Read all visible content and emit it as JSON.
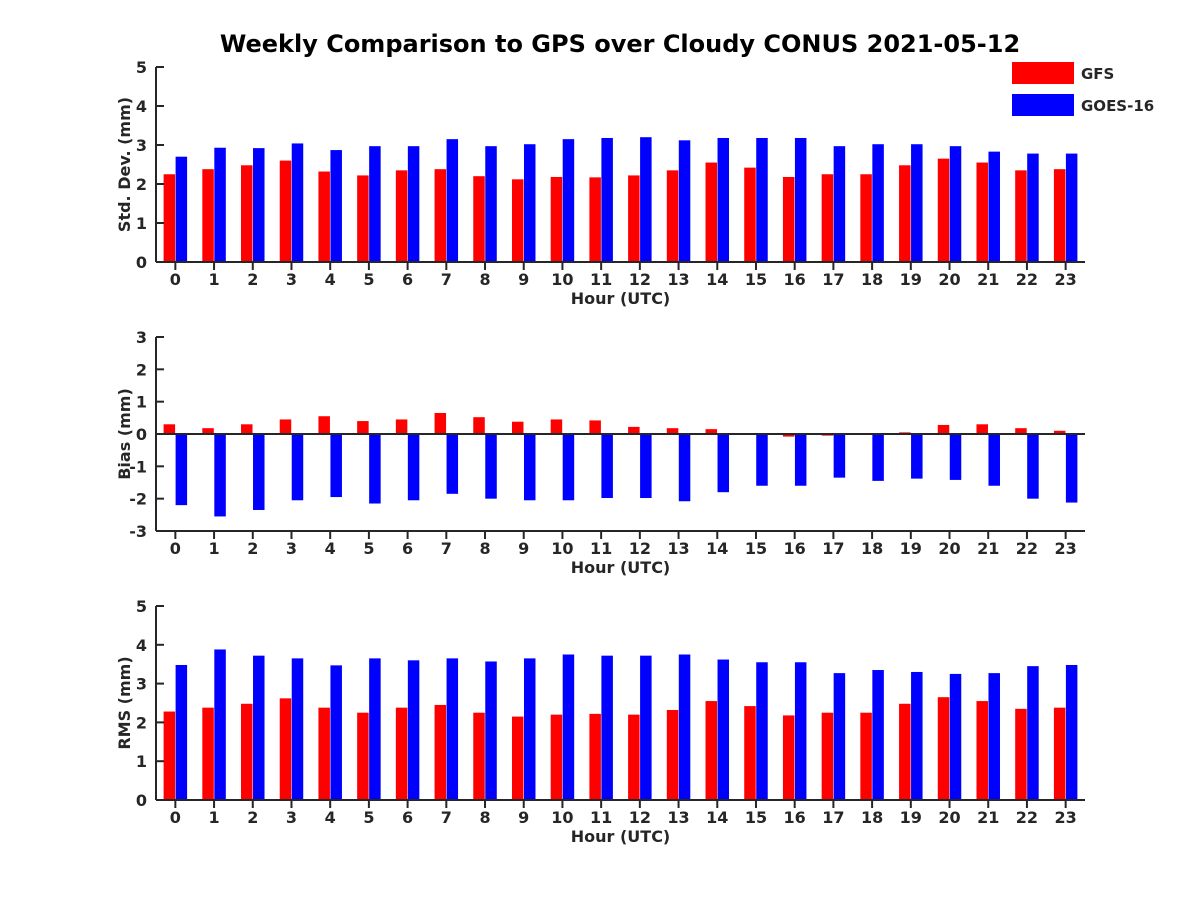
{
  "figure_title": "Weekly Comparison to GPS over Cloudy CONUS 2021-05-12",
  "legend": [
    {
      "label": "GFS",
      "color": "#ff0000"
    },
    {
      "label": "GOES-16",
      "color": "#0000ff"
    }
  ],
  "colors": {
    "GFS": "#ff0000",
    "GOES-16": "#0000ff",
    "axis": "#262626"
  },
  "chart_data": [
    {
      "type": "bar",
      "title": "",
      "xlabel": "Hour (UTC)",
      "ylabel": "Std. Dev. (mm)",
      "ylim": [
        0,
        5
      ],
      "yticks": [
        0,
        1,
        2,
        3,
        4,
        5
      ],
      "categories": [
        0,
        1,
        2,
        3,
        4,
        5,
        6,
        7,
        8,
        9,
        10,
        11,
        12,
        13,
        14,
        15,
        16,
        17,
        18,
        19,
        20,
        21,
        22,
        23
      ],
      "series": [
        {
          "name": "GFS",
          "values": [
            2.25,
            2.38,
            2.48,
            2.6,
            2.32,
            2.22,
            2.35,
            2.38,
            2.2,
            2.12,
            2.18,
            2.17,
            2.22,
            2.35,
            2.55,
            2.42,
            2.18,
            2.25,
            2.25,
            2.48,
            2.65,
            2.55,
            2.35,
            2.38
          ]
        },
        {
          "name": "GOES-16",
          "values": [
            2.7,
            2.93,
            2.92,
            3.04,
            2.87,
            2.97,
            2.97,
            3.15,
            2.97,
            3.02,
            3.15,
            3.18,
            3.2,
            3.12,
            3.18,
            3.18,
            3.18,
            2.97,
            3.02,
            3.02,
            2.97,
            2.83,
            2.78,
            2.78
          ]
        }
      ],
      "grid": false,
      "legend": "top-right"
    },
    {
      "type": "bar",
      "title": "",
      "xlabel": "Hour (UTC)",
      "ylabel": "Bias (mm)",
      "ylim": [
        -3,
        3
      ],
      "yticks": [
        -3,
        -2,
        -1,
        0,
        1,
        2,
        3
      ],
      "categories": [
        0,
        1,
        2,
        3,
        4,
        5,
        6,
        7,
        8,
        9,
        10,
        11,
        12,
        13,
        14,
        15,
        16,
        17,
        18,
        19,
        20,
        21,
        22,
        23
      ],
      "series": [
        {
          "name": "GFS",
          "values": [
            0.3,
            0.18,
            0.3,
            0.45,
            0.55,
            0.4,
            0.45,
            0.65,
            0.52,
            0.38,
            0.45,
            0.42,
            0.22,
            0.18,
            0.15,
            0.0,
            -0.08,
            -0.05,
            -0.03,
            0.05,
            0.28,
            0.3,
            0.18,
            0.1
          ]
        },
        {
          "name": "GOES-16",
          "values": [
            -2.2,
            -2.55,
            -2.35,
            -2.05,
            -1.95,
            -2.15,
            -2.05,
            -1.85,
            -2.0,
            -2.05,
            -2.05,
            -1.98,
            -1.98,
            -2.08,
            -1.8,
            -1.6,
            -1.6,
            -1.35,
            -1.45,
            -1.38,
            -1.42,
            -1.6,
            -2.0,
            -2.12
          ]
        }
      ],
      "grid": false
    },
    {
      "type": "bar",
      "title": "",
      "xlabel": "Hour (UTC)",
      "ylabel": "RMS (mm)",
      "ylim": [
        0,
        5
      ],
      "yticks": [
        0,
        1,
        2,
        3,
        4,
        5
      ],
      "categories": [
        0,
        1,
        2,
        3,
        4,
        5,
        6,
        7,
        8,
        9,
        10,
        11,
        12,
        13,
        14,
        15,
        16,
        17,
        18,
        19,
        20,
        21,
        22,
        23
      ],
      "series": [
        {
          "name": "GFS",
          "values": [
            2.28,
            2.38,
            2.48,
            2.62,
            2.38,
            2.25,
            2.38,
            2.45,
            2.25,
            2.15,
            2.2,
            2.22,
            2.2,
            2.32,
            2.55,
            2.42,
            2.18,
            2.25,
            2.25,
            2.48,
            2.65,
            2.55,
            2.35,
            2.38
          ]
        },
        {
          "name": "GOES-16",
          "values": [
            3.48,
            3.88,
            3.72,
            3.65,
            3.47,
            3.65,
            3.6,
            3.65,
            3.57,
            3.65,
            3.75,
            3.72,
            3.72,
            3.75,
            3.62,
            3.55,
            3.55,
            3.27,
            3.35,
            3.3,
            3.25,
            3.27,
            3.45,
            3.48
          ]
        }
      ],
      "grid": false
    }
  ]
}
